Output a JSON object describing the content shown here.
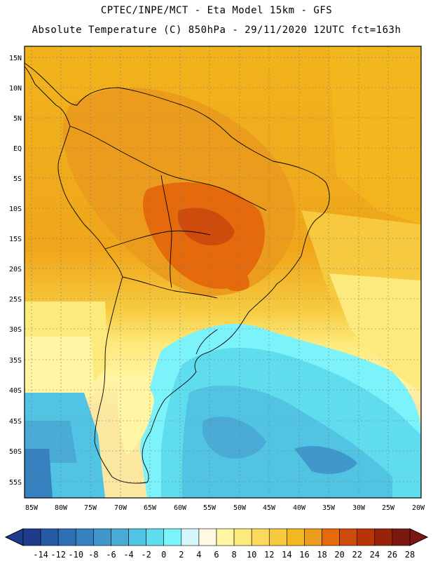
{
  "header": {
    "line1": "CPTEC/INPE/MCT -  Eta Model 15km - GFS",
    "line2": "Absolute Temperature (C) 850hPa - 29/11/2020 12UTC fct=163h"
  },
  "map": {
    "lat_labels": [
      "15N",
      "10N",
      "5N",
      "EQ",
      "5S",
      "10S",
      "15S",
      "20S",
      "25S",
      "30S",
      "35S",
      "40S",
      "45S",
      "50S",
      "55S"
    ],
    "lon_labels": [
      "85W",
      "80W",
      "75W",
      "70W",
      "65W",
      "60W",
      "55W",
      "50W",
      "45W",
      "40W",
      "35W",
      "30W",
      "25W",
      "20W"
    ]
  },
  "colorbar": {
    "labels": [
      "-14",
      "-12",
      "-10",
      "-8",
      "-6",
      "-4",
      "-2",
      "0",
      "2",
      "4",
      "6",
      "8",
      "10",
      "12",
      "14",
      "16",
      "18",
      "20",
      "22",
      "24",
      "26",
      "28"
    ],
    "colors": [
      "#1f3c8c",
      "#255aa5",
      "#2e6fb3",
      "#3682c0",
      "#3f97cb",
      "#4aabd6",
      "#52c4e3",
      "#5fdcee",
      "#7cf3fb",
      "#d6f6fb",
      "#fff9e4",
      "#fff5a3",
      "#fdea7c",
      "#fbd95e",
      "#f6c93e",
      "#f3b71f",
      "#ec9c1c",
      "#e46a0c",
      "#cf4b0b",
      "#b93308",
      "#99220b",
      "#7c1810"
    ],
    "legend_unit": "C"
  }
}
